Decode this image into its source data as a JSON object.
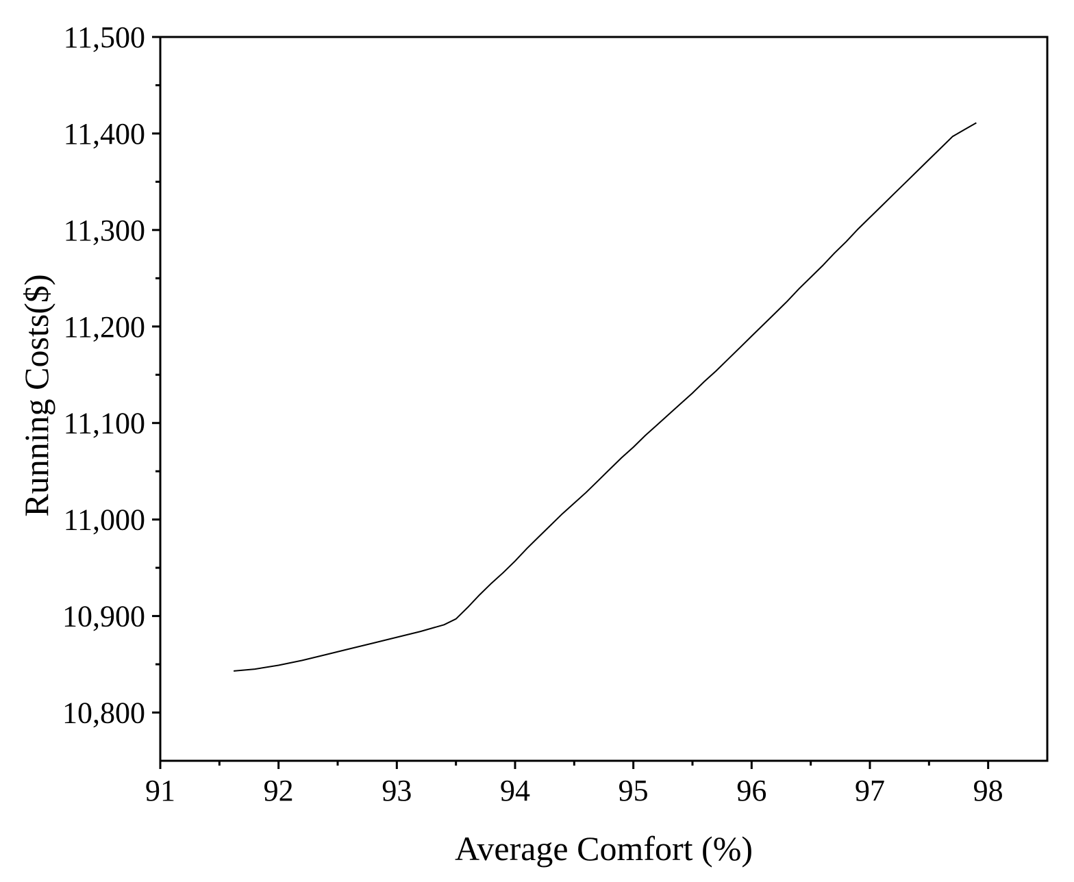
{
  "chart_data": {
    "type": "line",
    "title": "",
    "xlabel": "Average Comfort (%)",
    "ylabel": "Running Costs($)",
    "xlim": [
      91,
      98.5
    ],
    "ylim": [
      10750,
      11500
    ],
    "x_ticks": [
      91,
      92,
      93,
      94,
      95,
      96,
      97,
      98
    ],
    "x_tick_labels": [
      "91",
      "92",
      "93",
      "94",
      "95",
      "96",
      "97",
      "98"
    ],
    "y_ticks": [
      10800,
      10900,
      11000,
      11100,
      11200,
      11300,
      11400,
      11500
    ],
    "y_tick_labels": [
      "10,800",
      "10,900",
      "11,000",
      "11,100",
      "11,200",
      "11,300",
      "11,400",
      "11,500"
    ],
    "grid": false,
    "legend": "none",
    "line_color": "#000000",
    "series": [
      {
        "x": [
          91.62,
          91.8,
          92.0,
          92.2,
          92.4,
          92.6,
          92.8,
          93.0,
          93.2,
          93.4,
          93.5,
          93.6,
          93.7,
          93.8,
          93.9,
          94.0,
          94.1,
          94.2,
          94.3,
          94.4,
          94.5,
          94.6,
          94.7,
          94.8,
          94.9,
          95.0,
          95.1,
          95.2,
          95.3,
          95.4,
          95.5,
          95.6,
          95.7,
          95.8,
          95.9,
          96.0,
          96.1,
          96.2,
          96.3,
          96.4,
          96.5,
          96.6,
          96.7,
          96.8,
          96.9,
          97.0,
          97.1,
          97.2,
          97.3,
          97.4,
          97.5,
          97.6,
          97.7,
          97.8,
          97.9
        ],
        "y": [
          10843,
          10845,
          10849,
          10854,
          10860,
          10866,
          10872,
          10878,
          10884,
          10891,
          10897,
          10909,
          10922,
          10934,
          10945,
          10957,
          10970,
          10982,
          10994,
          11006,
          11017,
          11028,
          11040,
          11052,
          11064,
          11075,
          11087,
          11098,
          11109,
          11120,
          11131,
          11143,
          11154,
          11166,
          11178,
          11190,
          11202,
          11214,
          11226,
          11239,
          11251,
          11263,
          11276,
          11288,
          11301,
          11313,
          11325,
          11337,
          11349,
          11361,
          11373,
          11385,
          11397,
          11404,
          11411
        ]
      }
    ]
  }
}
